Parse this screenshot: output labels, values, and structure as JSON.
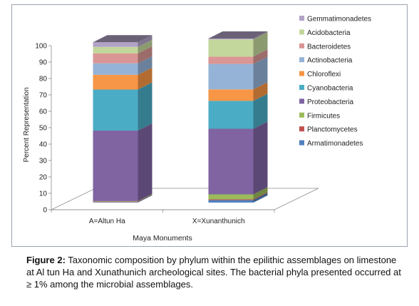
{
  "chart_data": {
    "type": "bar",
    "stacked": true,
    "three_d": true,
    "categories": [
      "A=Altun Ha",
      "X=Xunanthunich"
    ],
    "xlabel": "Maya Monuments",
    "ylabel": "Percent Representation",
    "ylim": [
      0,
      100
    ],
    "yticks": [
      "0",
      "10",
      "20",
      "30",
      "40",
      "50",
      "60",
      "70",
      "80",
      "90",
      "100"
    ],
    "legend_position": "right",
    "series": [
      {
        "name": "Armatimonadetes",
        "color": "#4f81bd",
        "values": [
          0.3,
          1.5
        ]
      },
      {
        "name": "Planctomycetes",
        "color": "#c0504d",
        "values": [
          0.3,
          0.5
        ]
      },
      {
        "name": "Firmicutes",
        "color": "#9bbb59",
        "values": [
          0.3,
          3.0
        ]
      },
      {
        "name": "Proteobacteria",
        "color": "#8064a2",
        "values": [
          43.0,
          40.0
        ]
      },
      {
        "name": "Cyanobacteria",
        "color": "#4bacc6",
        "values": [
          25.0,
          17.0
        ]
      },
      {
        "name": "Chloroflexi",
        "color": "#f79646",
        "values": [
          9.0,
          7.0
        ]
      },
      {
        "name": "Actinobacteria",
        "color": "#95b3d7",
        "values": [
          7.0,
          15.5
        ]
      },
      {
        "name": "Bacteroidetes",
        "color": "#d99694",
        "values": [
          6.0,
          4.5
        ]
      },
      {
        "name": "Acidobacteria",
        "color": "#c3d69b",
        "values": [
          4.0,
          10.5
        ]
      },
      {
        "name": "Gemmatimonadetes",
        "color": "#b2a2c7",
        "values": [
          2.8,
          0.5
        ]
      }
    ]
  },
  "caption": {
    "label": "Figure 2:",
    "text": " Taxonomic composition by phylum within the epilithic assemblages on limestone at Al tun Ha and Xunathunich archeological sites. The bacterial phyla presented occurred at ≥ 1% among the microbial assemblages."
  }
}
